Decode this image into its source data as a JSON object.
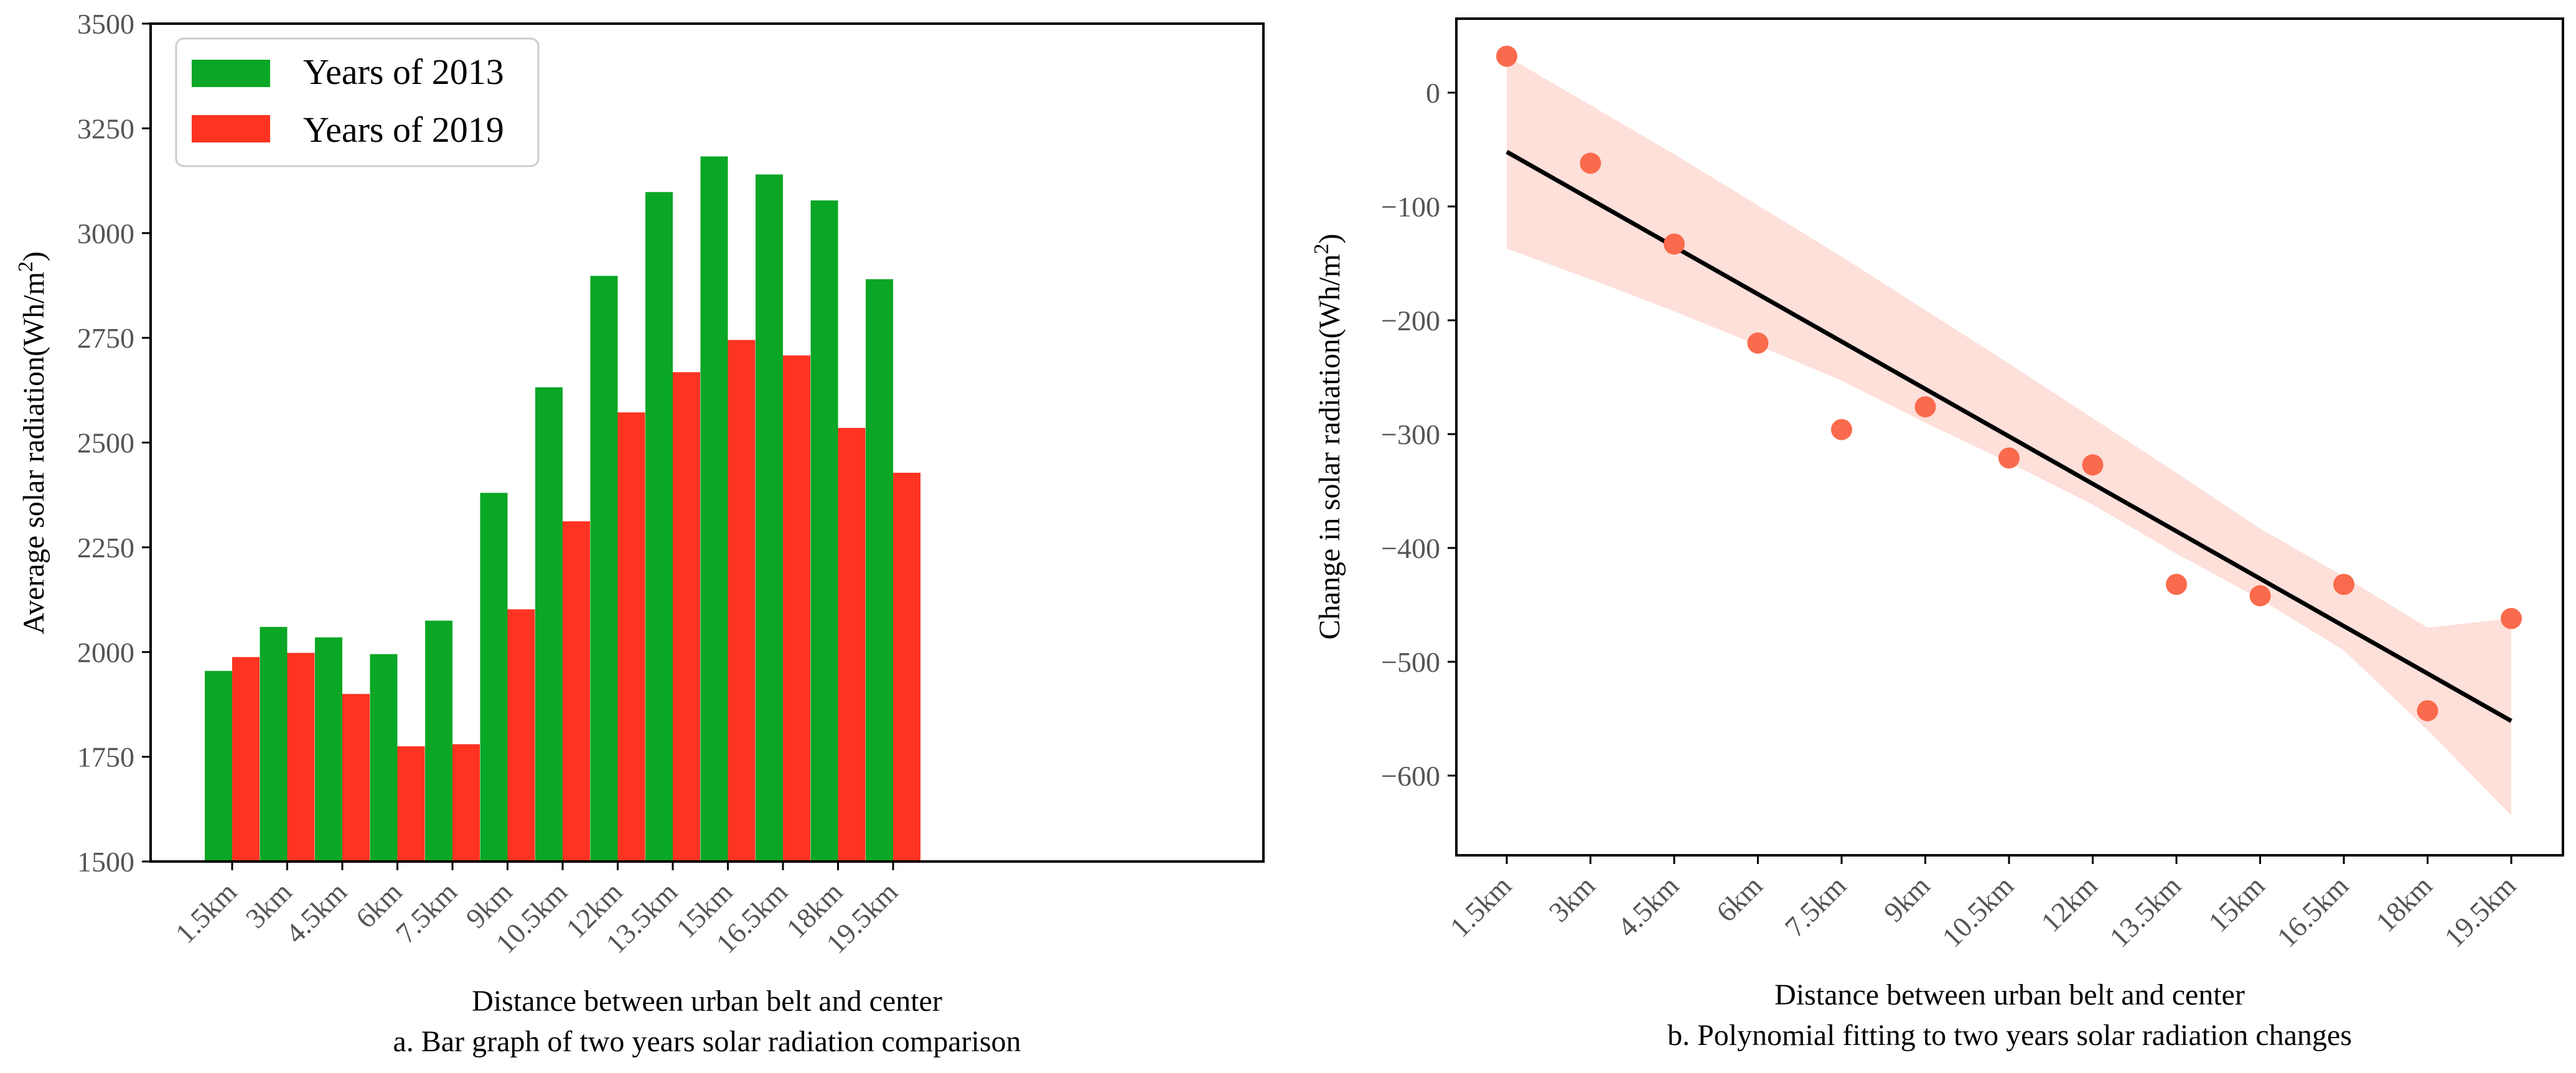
{
  "chart_data": [
    {
      "type": "bar",
      "title": "",
      "caption": "a. Bar graph of two years solar radiation comparison",
      "xlabel": "Distance between urban belt and center",
      "ylabel": "Average solar radiation(Wh/m",
      "ylabel_sup": "2",
      "ylabel_close": ")",
      "categories": [
        "1.5km",
        "3km",
        "4.5km",
        "6km",
        "7.5km",
        "9km",
        "10.5km",
        "12km",
        "13.5km",
        "15km",
        "16.5km",
        "18km",
        "19.5km"
      ],
      "series": [
        {
          "name": "Years of 2013",
          "color": "#0aa625",
          "values": [
            1955,
            2060,
            2035,
            1995,
            2075,
            2380,
            2632,
            2898,
            3098,
            3183,
            3140,
            3078,
            2890
          ]
        },
        {
          "name": "Years of 2019",
          "color": "#ff3322",
          "values": [
            1988,
            1998,
            1900,
            1775,
            1780,
            2102,
            2312,
            2572,
            2668,
            2745,
            2708,
            2535,
            2428
          ]
        }
      ],
      "ylim": [
        1500,
        3500
      ],
      "yticks": [
        1500,
        1750,
        2000,
        2250,
        2500,
        2750,
        3000,
        3250,
        3500
      ],
      "legend_position": "top-left",
      "grid": false
    },
    {
      "type": "scatter",
      "title": "",
      "caption": "b. Polynomial fitting to two years solar radiation changes",
      "xlabel": "Distance between urban belt and center",
      "ylabel": "Change in solar radiation(Wh/m",
      "ylabel_sup": "2",
      "ylabel_close": ")",
      "categories": [
        "1.5km",
        "3km",
        "4.5km",
        "6km",
        "7.5km",
        "9km",
        "10.5km",
        "12km",
        "13.5km",
        "15km",
        "16.5km",
        "18km",
        "19.5km"
      ],
      "points_color": "#fa6a4c",
      "band_color": "#fde0da",
      "line_color": "#000000",
      "values": [
        32,
        -62,
        -133,
        -220,
        -296,
        -276,
        -321,
        -327,
        -432,
        -442,
        -432,
        -543,
        -462
      ],
      "fit_line": [
        -52,
        -552
      ],
      "confidence_band": {
        "upper": [
          32,
          -11,
          -54,
          -99,
          -144,
          -191,
          -238,
          -286,
          -334,
          -383,
          -425,
          -470,
          -462
        ],
        "lower": [
          -137,
          -164,
          -192,
          -222,
          -253,
          -290,
          -325,
          -362,
          -405,
          -445,
          -490,
          -560,
          -635
        ]
      },
      "ylim": [
        -670,
        65
      ],
      "yticks": [
        0,
        -100,
        -200,
        -300,
        -400,
        -500,
        -600
      ],
      "ytick_labels": [
        "0",
        "−100",
        "−200",
        "−300",
        "−400",
        "−500",
        "−600"
      ],
      "grid": false
    }
  ]
}
